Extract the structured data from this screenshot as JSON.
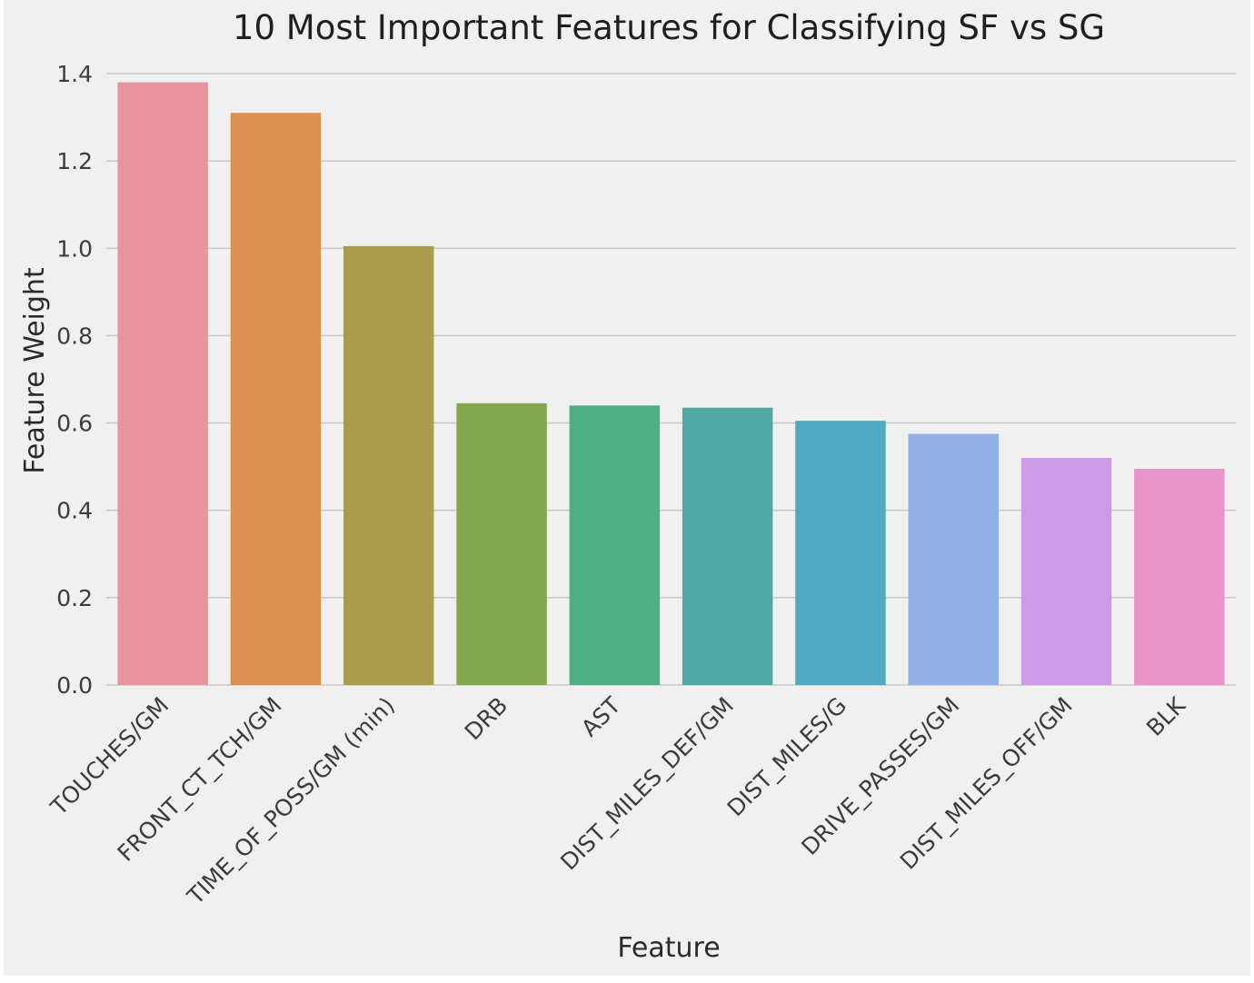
{
  "chart_data": {
    "type": "bar",
    "title": "10 Most Important Features for Classifying SF vs SG",
    "xlabel": "Feature",
    "ylabel": "Feature Weight",
    "categories": [
      "TOUCHES/GM",
      "FRONT_CT_TCH/GM",
      "TIME_OF_POSS/GM (min)",
      "DRB",
      "AST",
      "DIST_MILES_DEF/GM",
      "DIST_MILES/G",
      "DRIVE_PASSES/GM",
      "DIST_MILES_OFF/GM",
      "BLK"
    ],
    "values": [
      1.38,
      1.31,
      1.005,
      0.645,
      0.64,
      0.635,
      0.605,
      0.575,
      0.52,
      0.495
    ],
    "colors": [
      "#e8949f",
      "#d99052",
      "#aa9b4d",
      "#82a74e",
      "#4eae85",
      "#4fa8a6",
      "#4fabc2",
      "#90b0e6",
      "#cb9be6",
      "#e994c8"
    ],
    "ylim": [
      0,
      1.4
    ],
    "yticks": [
      "0.0",
      "0.2",
      "0.4",
      "0.6",
      "0.8",
      "1.0",
      "1.2",
      "1.4"
    ],
    "grid": "horizontal",
    "legend": "none",
    "background": "#f0f0f0"
  }
}
